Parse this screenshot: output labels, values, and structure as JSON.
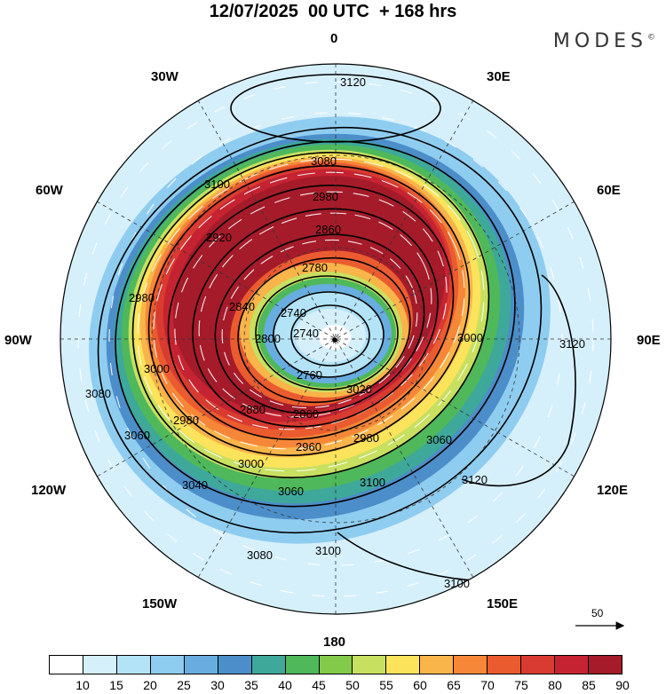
{
  "title": "12/07/2025  00 UTC  + 168 hrs",
  "brand": "MODES",
  "brand_mark": "©",
  "longitudes": {
    "n": "0",
    "ne30": "30E",
    "ne60": "60E",
    "e": "90E",
    "se120": "120E",
    "se150": "150E",
    "s": "180",
    "sw150": "150W",
    "sw120": "120W",
    "w": "90W",
    "nw60": "60W",
    "nw30": "30W"
  },
  "contours": {
    "c2740": "2740",
    "c2760": "2760",
    "c2780": "2780",
    "c2800": "2800",
    "c2820": "2820",
    "c2840": "2840",
    "c2860": "2860",
    "c2880": "2880",
    "c2900": "2900",
    "c2920": "2920",
    "c2940": "2940",
    "c2960": "2960",
    "c2980": "2980",
    "c3000": "3000",
    "c3020": "3020",
    "c3040": "3040",
    "c3060": "3060",
    "c3080": "3080",
    "c3100": "3100",
    "c3120": "3120"
  },
  "wind_reference": {
    "label": "50"
  },
  "colorbar": {
    "colors": [
      "#ffffff",
      "#d6f0fb",
      "#b3e3f7",
      "#8fcdf0",
      "#68addf",
      "#4c8ec9",
      "#3ea89a",
      "#4fb85a",
      "#83c94a",
      "#c8e060",
      "#fbe35b",
      "#f9b44a",
      "#f68738",
      "#ea5c2f",
      "#d93b30",
      "#c52331",
      "#a51b2a"
    ],
    "ticks": [
      "10",
      "15",
      "20",
      "25",
      "30",
      "35",
      "40",
      "45",
      "50",
      "55",
      "60",
      "65",
      "70",
      "75",
      "80",
      "85",
      "90"
    ]
  },
  "colors": {
    "jet_core": "#a51b2a",
    "land": "#e6e6e6",
    "contour": "#000000",
    "vectors": "#ffffff"
  }
}
